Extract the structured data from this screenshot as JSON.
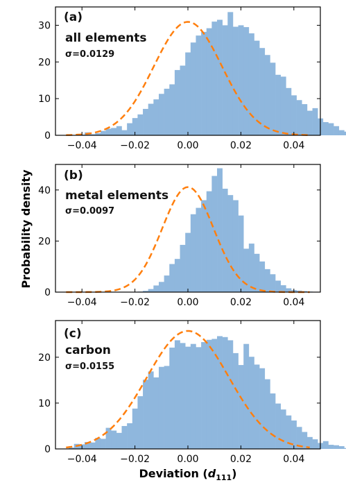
{
  "chart_data": [
    {
      "type": "bar",
      "panel_letter": "(a)",
      "title": "all elements",
      "sigma_label": "σ=0.0129",
      "xlim": [
        -0.05,
        0.05
      ],
      "ylim": [
        0,
        35
      ],
      "xticks": [
        -0.04,
        -0.02,
        0.0,
        0.02,
        0.04
      ],
      "xtick_labels": [
        "−0.04",
        "−0.02",
        "0.00",
        "0.02",
        "0.04"
      ],
      "yticks": [
        0,
        10,
        20,
        30
      ],
      "ytick_labels": [
        "0",
        "10",
        "20",
        "30"
      ],
      "bin_edges_start": -0.045,
      "bin_width": 0.002,
      "values": [
        0,
        0,
        0.2,
        0.8,
        0.3,
        0.6,
        1.2,
        1.8,
        2.0,
        2.5,
        1.4,
        3.3,
        4.7,
        5.7,
        7.2,
        8.6,
        9.8,
        11.3,
        12.7,
        13.9,
        17.8,
        19.0,
        22.6,
        25.3,
        27.2,
        28.2,
        29.2,
        31.0,
        31.5,
        30.0,
        33.6,
        29.6,
        30.0,
        29.5,
        27.8,
        25.8,
        23.8,
        21.9,
        19.8,
        16.5,
        16.0,
        12.9,
        10.9,
        9.6,
        8.5,
        6.7,
        7.4,
        4.6,
        3.6,
        3.3,
        2.5,
        1.4,
        1.0,
        0.6,
        1.0,
        0.5,
        0.3,
        0.3,
        0.1,
        0.1
      ],
      "fit": {
        "type": "gaussian",
        "mean": 0.0,
        "sigma": 0.0129,
        "style": "dashed",
        "color": "#ff7f0e"
      },
      "bar_color": "#8fb7dd"
    },
    {
      "type": "bar",
      "panel_letter": "(b)",
      "title": "metal elements",
      "sigma_label": "σ=0.0097",
      "xlim": [
        -0.05,
        0.05
      ],
      "ylim": [
        0,
        50
      ],
      "xticks": [
        -0.04,
        -0.02,
        0.0,
        0.02,
        0.04
      ],
      "xtick_labels": [
        "−0.04",
        "−0.02",
        "0.00",
        "0.02",
        "0.04"
      ],
      "yticks": [
        0,
        20,
        40
      ],
      "ytick_labels": [
        "0",
        "20",
        "40"
      ],
      "bin_edges_start": -0.045,
      "bin_width": 0.002,
      "values": [
        0,
        0,
        0,
        0,
        0,
        0,
        0,
        0,
        0,
        0,
        0,
        0,
        0,
        0.2,
        0.5,
        1.2,
        2.6,
        4.0,
        6.5,
        11.0,
        13.0,
        18.5,
        23.2,
        30.5,
        33.0,
        36.0,
        39.5,
        45.5,
        48.5,
        40.5,
        38.0,
        36.0,
        30.0,
        17.0,
        19.0,
        15.0,
        12.0,
        9.0,
        7.0,
        4.5,
        2.7,
        1.5,
        0.8,
        0.6,
        0.4,
        0.2,
        0.1,
        0,
        0,
        0,
        0,
        0,
        0,
        0,
        0,
        0,
        0,
        0,
        0,
        0
      ],
      "fit": {
        "type": "gaussian",
        "mean": 0.0,
        "sigma": 0.0097,
        "style": "dashed",
        "color": "#ff7f0e"
      },
      "bar_color": "#8fb7dd"
    },
    {
      "type": "bar",
      "panel_letter": "(c)",
      "title": "carbon",
      "sigma_label": "σ=0.0155",
      "xlim": [
        -0.05,
        0.05
      ],
      "ylim": [
        0,
        28
      ],
      "xticks": [
        -0.04,
        -0.02,
        0.0,
        0.02,
        0.04
      ],
      "xtick_labels": [
        "−0.04",
        "−0.02",
        "0.00",
        "0.02",
        "0.04"
      ],
      "yticks": [
        0,
        10,
        20
      ],
      "ytick_labels": [
        "0",
        "10",
        "20"
      ],
      "bin_edges_start": -0.045,
      "bin_width": 0.002,
      "values": [
        0.3,
        1.1,
        1.0,
        1.5,
        1.4,
        2.4,
        2.2,
        4.6,
        4.0,
        3.5,
        5.0,
        5.6,
        8.8,
        11.5,
        15.1,
        16.9,
        15.6,
        17.9,
        18.1,
        22.1,
        23.7,
        23.1,
        22.3,
        22.9,
        22.2,
        23.3,
        23.8,
        24.0,
        24.6,
        24.4,
        23.7,
        20.9,
        18.3,
        22.9,
        20.1,
        18.4,
        17.6,
        15.2,
        12.1,
        9.9,
        8.6,
        7.3,
        6.2,
        4.8,
        3.7,
        2.6,
        2.1,
        1.3,
        1.7,
        0.9,
        0.8,
        0.6,
        0.2,
        0.2,
        0.1,
        0,
        0,
        0,
        0,
        0
      ],
      "fit": {
        "type": "gaussian",
        "mean": 0.0,
        "sigma": 0.0155,
        "style": "dashed",
        "color": "#ff7f0e"
      },
      "bar_color": "#8fb7dd"
    }
  ],
  "ylabel": "Probability density",
  "xlabel_main": "Deviation (",
  "xlabel_var": "d",
  "xlabel_sub": "111",
  "xlabel_close": ")"
}
